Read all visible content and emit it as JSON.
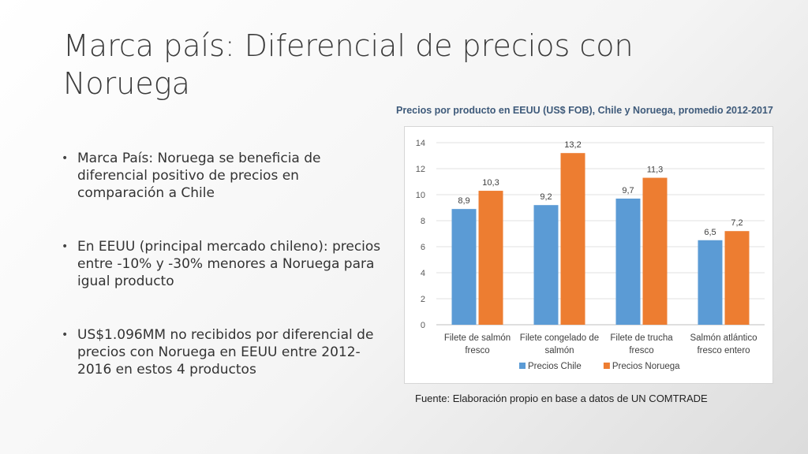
{
  "slide": {
    "title": "Marca país: Diferencial de precios con Noruega",
    "bullets": [
      "Marca País: Noruega se beneficia de diferencial positivo de precios en comparación a Chile",
      "En EEUU (principal mercado chileno): precios entre -10% y -30% menores a Noruega para igual producto",
      "US$1.096MM no recibidos por diferencial de precios con Noruega en EEUU entre 2012-2016  en estos 4 productos"
    ],
    "bullet_symbol": "•",
    "source": "Fuente: Elaboración propio en base a datos de UN COMTRADE"
  },
  "chart_data": {
    "type": "bar",
    "title": "Precios por producto en EEUU (US$ FOB), Chile y Noruega, promedio 2012-2017",
    "categories": [
      [
        "Filete de salmón",
        "fresco"
      ],
      [
        "Filete congelado de",
        "salmón"
      ],
      [
        "Filete de trucha",
        "fresco"
      ],
      [
        "Salmón atlántico",
        "fresco entero"
      ]
    ],
    "series": [
      {
        "name": "Precios Chile",
        "values": [
          8.9,
          9.2,
          9.7,
          6.5
        ],
        "labels": [
          "8,9",
          "9,2",
          "9,7",
          "6,5"
        ],
        "color": "#5b9bd5"
      },
      {
        "name": "Precios Noruega",
        "values": [
          10.3,
          13.2,
          11.3,
          7.2
        ],
        "labels": [
          "10,3",
          "13,2",
          "11,3",
          "7,2"
        ],
        "color": "#ed7d31"
      }
    ],
    "ylim": [
      0,
      14
    ],
    "yticks": [
      0,
      2,
      4,
      6,
      8,
      10,
      12,
      14
    ],
    "grid": true,
    "legend": "bottom"
  }
}
